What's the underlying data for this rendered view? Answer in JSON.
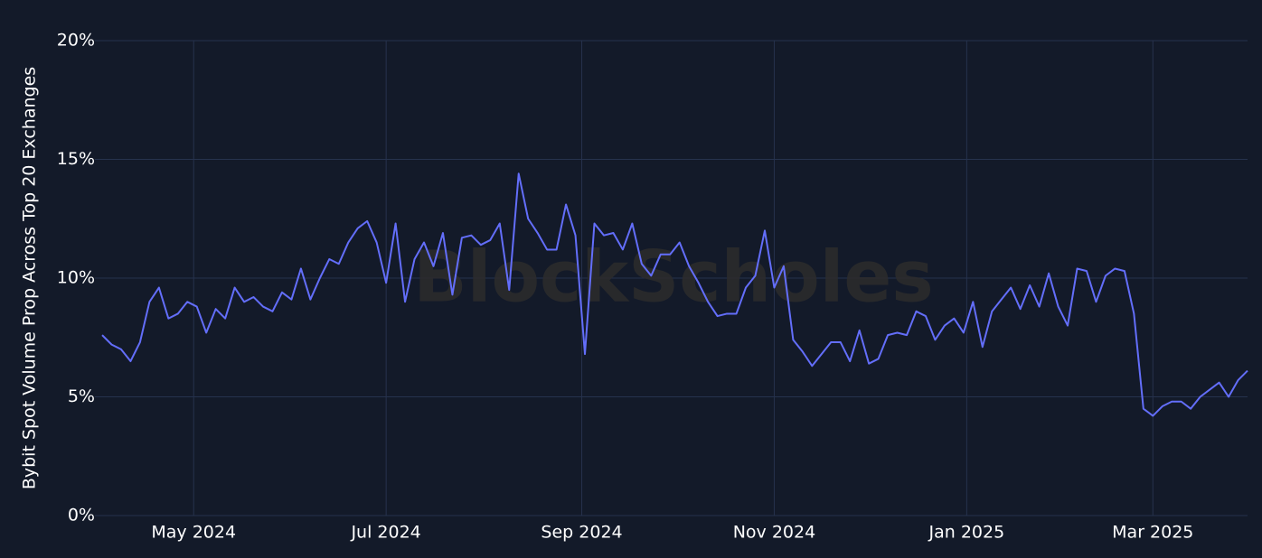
{
  "chart_data": {
    "type": "line",
    "watermark": "BlockScholes",
    "y_label": "Bybit Spot Volume Prop Across Top 20 Exchanges",
    "grid": true,
    "xlim": [
      "2024-04-02",
      "2025-03-31"
    ],
    "xticks": [
      {
        "value": "2024-05-01",
        "label": "May 2024"
      },
      {
        "value": "2024-07-01",
        "label": "Jul 2024"
      },
      {
        "value": "2024-09-01",
        "label": "Sep 2024"
      },
      {
        "value": "2024-11-01",
        "label": "Nov 2024"
      },
      {
        "value": "2025-01-01",
        "label": "Jan 2025"
      },
      {
        "value": "2025-03-01",
        "label": "Mar 2025"
      }
    ],
    "ylim": [
      0,
      20
    ],
    "yticks": [
      {
        "value": 0,
        "label": "0%"
      },
      {
        "value": 5,
        "label": "5%"
      },
      {
        "value": 10,
        "label": "10%"
      },
      {
        "value": 15,
        "label": "15%"
      },
      {
        "value": 20,
        "label": "20%"
      }
    ],
    "x": [
      "2024-04-02",
      "2024-04-05",
      "2024-04-08",
      "2024-04-11",
      "2024-04-14",
      "2024-04-17",
      "2024-04-20",
      "2024-04-23",
      "2024-04-26",
      "2024-04-29",
      "2024-05-02",
      "2024-05-05",
      "2024-05-08",
      "2024-05-11",
      "2024-05-14",
      "2024-05-17",
      "2024-05-20",
      "2024-05-23",
      "2024-05-26",
      "2024-05-29",
      "2024-06-01",
      "2024-06-04",
      "2024-06-07",
      "2024-06-10",
      "2024-06-13",
      "2024-06-16",
      "2024-06-19",
      "2024-06-22",
      "2024-06-25",
      "2024-06-28",
      "2024-07-01",
      "2024-07-04",
      "2024-07-07",
      "2024-07-10",
      "2024-07-13",
      "2024-07-16",
      "2024-07-19",
      "2024-07-22",
      "2024-07-25",
      "2024-07-28",
      "2024-07-31",
      "2024-08-03",
      "2024-08-06",
      "2024-08-09",
      "2024-08-12",
      "2024-08-15",
      "2024-08-18",
      "2024-08-21",
      "2024-08-24",
      "2024-08-27",
      "2024-08-30",
      "2024-09-02",
      "2024-09-05",
      "2024-09-08",
      "2024-09-11",
      "2024-09-14",
      "2024-09-17",
      "2024-09-20",
      "2024-09-23",
      "2024-09-26",
      "2024-09-29",
      "2024-10-02",
      "2024-10-05",
      "2024-10-08",
      "2024-10-11",
      "2024-10-14",
      "2024-10-17",
      "2024-10-20",
      "2024-10-23",
      "2024-10-26",
      "2024-10-29",
      "2024-11-01",
      "2024-11-04",
      "2024-11-07",
      "2024-11-10",
      "2024-11-13",
      "2024-11-16",
      "2024-11-19",
      "2024-11-22",
      "2024-11-25",
      "2024-11-28",
      "2024-12-01",
      "2024-12-04",
      "2024-12-07",
      "2024-12-10",
      "2024-12-13",
      "2024-12-16",
      "2024-12-19",
      "2024-12-22",
      "2024-12-25",
      "2024-12-28",
      "2024-12-31",
      "2025-01-03",
      "2025-01-06",
      "2025-01-09",
      "2025-01-12",
      "2025-01-15",
      "2025-01-18",
      "2025-01-21",
      "2025-01-24",
      "2025-01-27",
      "2025-01-30",
      "2025-02-02",
      "2025-02-05",
      "2025-02-08",
      "2025-02-11",
      "2025-02-14",
      "2025-02-17",
      "2025-02-20",
      "2025-02-23",
      "2025-02-26",
      "2025-03-01",
      "2025-03-04",
      "2025-03-07",
      "2025-03-10",
      "2025-03-13",
      "2025-03-16",
      "2025-03-19",
      "2025-03-22",
      "2025-03-25",
      "2025-03-28",
      "2025-03-31"
    ],
    "series": [
      {
        "color": "#636efa",
        "values": [
          7.6,
          7.2,
          7.0,
          6.5,
          7.3,
          9.0,
          9.6,
          8.3,
          8.5,
          9.0,
          8.8,
          7.7,
          8.7,
          8.3,
          9.6,
          9.0,
          9.2,
          8.8,
          8.6,
          9.4,
          9.1,
          10.4,
          9.1,
          10.0,
          10.8,
          10.6,
          11.5,
          12.1,
          12.4,
          11.5,
          9.8,
          12.3,
          9.0,
          10.8,
          11.5,
          10.5,
          11.9,
          9.3,
          11.7,
          11.8,
          11.4,
          11.6,
          12.3,
          9.5,
          14.4,
          12.5,
          11.9,
          11.2,
          11.2,
          13.1,
          11.8,
          6.8,
          12.3,
          11.8,
          11.9,
          11.2,
          12.3,
          10.6,
          10.1,
          11.0,
          11.0,
          11.5,
          10.5,
          9.8,
          9.0,
          8.4,
          8.5,
          8.5,
          9.6,
          10.1,
          12.0,
          9.6,
          10.5,
          7.4,
          6.9,
          6.3,
          6.8,
          7.3,
          7.3,
          6.5,
          7.8,
          6.4,
          6.6,
          7.6,
          7.7,
          7.6,
          8.6,
          8.4,
          7.4,
          8.0,
          8.3,
          7.7,
          9.0,
          7.1,
          8.6,
          9.1,
          9.6,
          8.7,
          9.7,
          8.8,
          10.2,
          8.8,
          8.0,
          10.4,
          10.3,
          9.0,
          10.1,
          10.4,
          10.3,
          8.5,
          4.5,
          4.2,
          4.6,
          4.8,
          4.8,
          4.5,
          5.0,
          5.3,
          5.6,
          5.0,
          5.7,
          6.1
        ]
      }
    ]
  }
}
